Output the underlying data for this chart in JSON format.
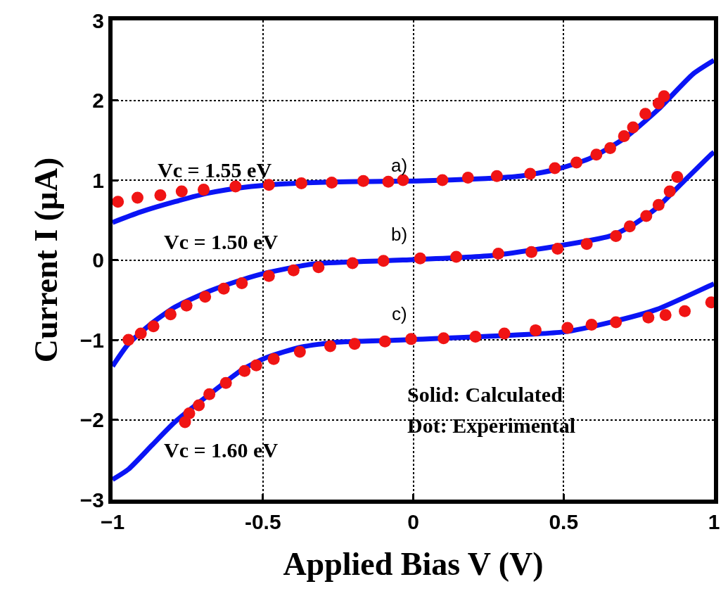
{
  "chart_data": {
    "type": "line",
    "xlabel": "Applied Bias V (V)",
    "ylabel": "Current I (µA)",
    "xlim": [
      -1,
      1
    ],
    "xticks": [
      {
        "value": -1,
        "label": "−1"
      },
      -0.5,
      0,
      0.5,
      1
    ],
    "ylim": [
      -3,
      3
    ],
    "yticks": [
      {
        "value": -3,
        "label": "−3"
      },
      {
        "value": -2,
        "label": "−2"
      },
      {
        "value": -1,
        "label": "−1"
      },
      0,
      1,
      2,
      3
    ],
    "grid": true,
    "series": [
      {
        "color": "#0a14f5",
        "line_style": "solid",
        "marker": "none",
        "x": [
          -1,
          -0.908,
          -0.793,
          -0.678,
          -0.563,
          -0.448,
          -0.333,
          -0.218,
          0.011,
          0.241,
          0.356,
          0.471,
          0.586,
          0.701,
          0.816,
          0.931,
          1
        ],
        "values": [
          0.47,
          0.6,
          0.73,
          0.84,
          0.91,
          0.95,
          0.97,
          0.98,
          0.99,
          1.02,
          1.05,
          1.13,
          1.27,
          1.52,
          1.89,
          2.33,
          2.5
        ]
      },
      {
        "type": "scatter",
        "color": "#f01414",
        "marker": "circle",
        "x": [
          -0.982,
          -0.917,
          -0.841,
          -0.77,
          -0.697,
          -0.591,
          -0.48,
          -0.372,
          -0.271,
          -0.166,
          -0.083,
          -0.034,
          0.097,
          0.182,
          0.278,
          0.389,
          0.471,
          0.543,
          0.609,
          0.655,
          0.701,
          0.731,
          0.772,
          0.816,
          0.834
        ],
        "values": [
          0.73,
          0.78,
          0.81,
          0.86,
          0.88,
          0.92,
          0.94,
          0.96,
          0.97,
          0.99,
          0.98,
          1.0,
          1.0,
          1.03,
          1.05,
          1.08,
          1.15,
          1.22,
          1.32,
          1.4,
          1.55,
          1.66,
          1.83,
          1.96,
          2.05
        ]
      },
      {
        "color": "#0a14f5",
        "line_style": "solid",
        "marker": "none",
        "x": [
          -1,
          -0.947,
          -0.869,
          -0.793,
          -0.678,
          -0.563,
          -0.487,
          -0.333,
          -0.103,
          -0.034,
          0.271,
          0.655,
          0.731,
          0.809,
          0.885,
          0.993,
          1
        ],
        "values": [
          -1.33,
          -1.05,
          -0.79,
          -0.59,
          -0.39,
          -0.24,
          -0.16,
          -0.05,
          -0.01,
          0,
          0.06,
          0.3,
          0.44,
          0.65,
          0.93,
          1.33,
          1.35
        ]
      },
      {
        "type": "scatter",
        "color": "#f01414",
        "marker": "circle",
        "x": [
          -0.947,
          -0.906,
          -0.864,
          -0.807,
          -0.754,
          -0.692,
          -0.63,
          -0.57,
          -0.48,
          -0.398,
          -0.315,
          -0.202,
          -0.099,
          0.023,
          0.143,
          0.283,
          0.393,
          0.48,
          0.577,
          0.674,
          0.72,
          0.775,
          0.816,
          0.853,
          0.878
        ],
        "values": [
          -1.0,
          -0.92,
          -0.83,
          -0.68,
          -0.57,
          -0.46,
          -0.36,
          -0.29,
          -0.2,
          -0.13,
          -0.09,
          -0.04,
          -0.01,
          0.02,
          0.04,
          0.08,
          0.1,
          0.14,
          0.2,
          0.3,
          0.42,
          0.55,
          0.69,
          0.86,
          1.04
        ]
      },
      {
        "color": "#0a14f5",
        "line_style": "solid",
        "marker": "none",
        "x": [
          -1,
          -0.947,
          -0.869,
          -0.793,
          -0.639,
          -0.563,
          -0.487,
          -0.372,
          -0.257,
          -0.028,
          0.501,
          0.655,
          0.809,
          0.993,
          1
        ],
        "values": [
          -2.75,
          -2.62,
          -2.32,
          -2.03,
          -1.57,
          -1.36,
          -1.22,
          -1.09,
          -1.03,
          -1.0,
          -0.9,
          -0.78,
          -0.62,
          -0.31,
          -0.3
        ]
      },
      {
        "type": "scatter",
        "color": "#f01414",
        "marker": "circle",
        "x": [
          -0.759,
          -0.745,
          -0.713,
          -0.678,
          -0.623,
          -0.561,
          -0.522,
          -0.464,
          -0.377,
          -0.276,
          -0.195,
          -0.094,
          -0.007,
          0.101,
          0.207,
          0.303,
          0.407,
          0.513,
          0.593,
          0.674,
          0.782,
          0.839,
          0.903,
          0.991
        ],
        "values": [
          -2.03,
          -1.92,
          -1.82,
          -1.68,
          -1.54,
          -1.39,
          -1.32,
          -1.24,
          -1.15,
          -1.08,
          -1.05,
          -1.02,
          -0.99,
          -0.98,
          -0.96,
          -0.92,
          -0.88,
          -0.85,
          -0.81,
          -0.78,
          -0.72,
          -0.69,
          -0.64,
          -0.53
        ]
      }
    ],
    "annotations": [
      "Vc = 1.55 eV",
      "Vc = 1.50 eV",
      "Vc = 1.60 eV",
      "a)",
      "b)",
      "c)",
      "Solid: Calculated",
      "Dot: Experimental"
    ]
  }
}
